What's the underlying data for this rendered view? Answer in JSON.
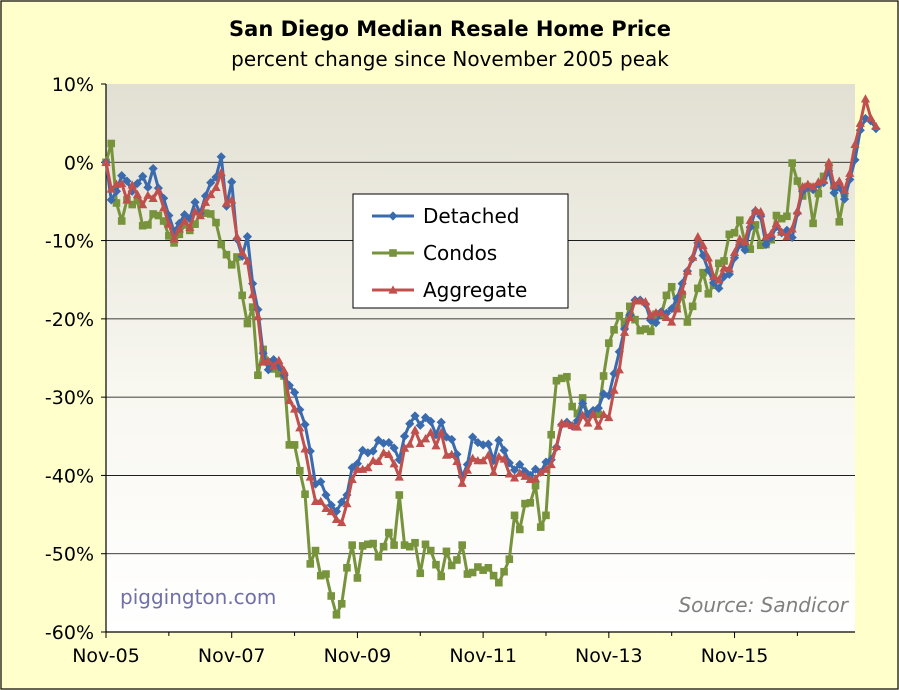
{
  "chart_data": {
    "type": "line",
    "title": "San Diego Median Resale Home Price",
    "subtitle": "percent change since November 2005 peak",
    "xlabel": "",
    "ylabel": "",
    "ylim": [
      -60,
      10
    ],
    "yticks": [
      "10%",
      "0%",
      "-10%",
      "-20%",
      "-30%",
      "-40%",
      "-50%",
      "-60%"
    ],
    "xticks": [
      "Nov-05",
      "Nov-07",
      "Nov-09",
      "Nov-11",
      "Nov-13",
      "Nov-15"
    ],
    "x_start": "Nov-05",
    "x_range_months": [
      0,
      143
    ],
    "grid": "horizontal",
    "legend_placement": "center",
    "annotations": {
      "watermark": "piggington.com",
      "source": "Source: Sandicor"
    },
    "series": [
      {
        "name": "Detached",
        "color": "#3A6BAF",
        "marker": "diamond",
        "values": [
          0,
          -4.8,
          -3.7,
          -1.7,
          -2.4,
          -3.7,
          -2.7,
          -1.8,
          -3.2,
          -0.8,
          -3.3,
          -4.6,
          -6.8,
          -8.8,
          -7.8,
          -6.7,
          -7.2,
          -5.1,
          -6.5,
          -4.3,
          -2.6,
          -1.9,
          0.7,
          -5.6,
          -2.5,
          -9.8,
          -12,
          -9.5,
          -15.5,
          -18.8,
          -24.4,
          -26.5,
          -25.2,
          -26.1,
          -27.2,
          -28.5,
          -29.4,
          -31.6,
          -33.5,
          -36.9,
          -41.1,
          -40.8,
          -42.5,
          -43.8,
          -44.6,
          -43.4,
          -42.5,
          -39,
          -38.5,
          -36.8,
          -37.1,
          -36.9,
          -35.5,
          -35.9,
          -35.8,
          -36.5,
          -38,
          -35,
          -33.4,
          -32.4,
          -33.6,
          -32.6,
          -33.1,
          -34.8,
          -33.2,
          -35.1,
          -35.4,
          -37.3,
          -40.2,
          -38.6,
          -35.1,
          -35.8,
          -36.1,
          -36,
          -38.1,
          -35.5,
          -36.8,
          -38.4,
          -39.3,
          -38.6,
          -39.5,
          -40,
          -39.2,
          -39.6,
          -38.3,
          -38,
          -36.4,
          -33.5,
          -33.2,
          -33.7,
          -33,
          -30.8,
          -32.2,
          -31.7,
          -31.4,
          -29.6,
          -29.8,
          -27,
          -24.2,
          -21.3,
          -19.5,
          -17.6,
          -17.6,
          -18.1,
          -20.2,
          -20.5,
          -19.1,
          -19.3,
          -18.7,
          -17.4,
          -15.5,
          -13.9,
          -12.3,
          -10.3,
          -11.9,
          -13.8,
          -15.4,
          -16.1,
          -14.6,
          -14.3,
          -12.2,
          -10.5,
          -11.2,
          -8.3,
          -6.2,
          -6.9,
          -10.5,
          -9.6,
          -8.2,
          -9,
          -8.7,
          -9.6,
          -6.5,
          -3.7,
          -3.2,
          -3.5,
          -2.8,
          -2.6,
          -1.1,
          -3.9,
          -3.2,
          -4.7,
          -2.2,
          0.3,
          4.1,
          5.6,
          5.3,
          4.3
        ]
      },
      {
        "name": "Condos",
        "color": "#77933C",
        "marker": "square",
        "values": [
          0,
          2.4,
          -5.2,
          -7.5,
          -4.8,
          -5.4,
          -4.9,
          -8.1,
          -8,
          -6.6,
          -6.8,
          -7.5,
          -9.4,
          -10.3,
          -9.2,
          -8,
          -8.7,
          -7.9,
          -6.5,
          -6.5,
          -6.6,
          -7.7,
          -10.5,
          -11.8,
          -13.1,
          -12.1,
          -17,
          -20.6,
          -18.5,
          -27.2,
          -23.9,
          -25.5,
          -26.4,
          -27,
          -27.3,
          -36.1,
          -36.1,
          -39.4,
          -42.4,
          -51.3,
          -49.6,
          -52.8,
          -52.6,
          -55.4,
          -57.8,
          -56.4,
          -51.8,
          -48.9,
          -53.1,
          -49,
          -48.8,
          -48.7,
          -50.4,
          -49.1,
          -47.3,
          -48.9,
          -42.5,
          -48.9,
          -49.1,
          -48.6,
          -52.5,
          -48.8,
          -49.6,
          -51.4,
          -52.9,
          -49.7,
          -51.5,
          -50.8,
          -48.9,
          -52.6,
          -52.4,
          -51.7,
          -52.1,
          -51.8,
          -52.8,
          -53.7,
          -52.3,
          -50.7,
          -45.1,
          -46.9,
          -43.6,
          -43.5,
          -41.3,
          -46.6,
          -45.1,
          -34.8,
          -27.9,
          -27.6,
          -27.4,
          -31.2,
          -32.1,
          -30.1,
          -32.2,
          -32.2,
          -32.2,
          -27.3,
          -23.1,
          -21.4,
          -19.6,
          -20.7,
          -18.4,
          -20.1,
          -21.5,
          -21.3,
          -21.6,
          -19.4,
          -19.5,
          -17,
          -15.9,
          -18.7,
          -16.9,
          -20.4,
          -18.4,
          -16.1,
          -14.1,
          -16.8,
          -15.7,
          -12.9,
          -12.6,
          -9.2,
          -9,
          -7.4,
          -10.3,
          -11.1,
          -8,
          -10.6,
          -10.5,
          -9.9,
          -6.8,
          -7.2,
          -6.9,
          -0.1,
          -2.4,
          -4.3,
          -3.1,
          -7.8,
          -4,
          -1.8,
          -0.4,
          -3,
          -7.6,
          -4
        ]
      },
      {
        "name": "Aggregate",
        "color": "#C0504D",
        "marker": "triangle",
        "values": [
          0,
          -3.4,
          -2.8,
          -2.7,
          -4.8,
          -2.9,
          -4.1,
          -5.4,
          -4.2,
          -4.6,
          -3.6,
          -5.8,
          -7.9,
          -9.8,
          -8.5,
          -7.5,
          -8.3,
          -6.3,
          -6.8,
          -5.1,
          -4.1,
          -3.2,
          -1.3,
          -5.2,
          -4.8,
          -9.5,
          -11.5,
          -12.6,
          -16.9,
          -19.7,
          -25.5,
          -25.4,
          -26,
          -25.3,
          -26.6,
          -30.4,
          -31.5,
          -33.9,
          -36.6,
          -40.2,
          -43.3,
          -43.3,
          -44.2,
          -44.6,
          -45.6,
          -46,
          -43.6,
          -40.5,
          -39.2,
          -39.2,
          -39,
          -38.1,
          -38.2,
          -37.1,
          -37.3,
          -38.5,
          -40.2,
          -36.5,
          -36,
          -34.2,
          -35.9,
          -35.3,
          -34.5,
          -36.2,
          -34.5,
          -37.4,
          -37.3,
          -38.2,
          -41,
          -39.3,
          -37.8,
          -38.1,
          -38.1,
          -37.4,
          -39.6,
          -37.6,
          -37.9,
          -39.8,
          -40.3,
          -39.7,
          -40.1,
          -40.5,
          -40.4,
          -39.6,
          -39.2,
          -38.6,
          -36.3,
          -33.3,
          -33.4,
          -33.6,
          -33.8,
          -32.3,
          -33.3,
          -32.1,
          -33.7,
          -32.2,
          -32.6,
          -29.1,
          -26.5,
          -21.7,
          -19.8,
          -17.7,
          -17.7,
          -17.8,
          -19.5,
          -19.2,
          -19.2,
          -19.8,
          -20.4,
          -18.7,
          -16.4,
          -13.9,
          -12.1,
          -9.5,
          -10.6,
          -12.2,
          -14.6,
          -15,
          -13.5,
          -13.6,
          -11.5,
          -9.8,
          -10.1,
          -7.4,
          -6.1,
          -6.3,
          -9.5,
          -9.1,
          -7.8,
          -8.9,
          -9.5,
          -8.5,
          -6.2,
          -3.1,
          -2.8,
          -3.1,
          -2.5,
          -2.3,
          0,
          -2.9,
          -2.4,
          -3.6,
          -1.4,
          2.3,
          5,
          8.1,
          5.7,
          4.6
        ]
      }
    ]
  }
}
